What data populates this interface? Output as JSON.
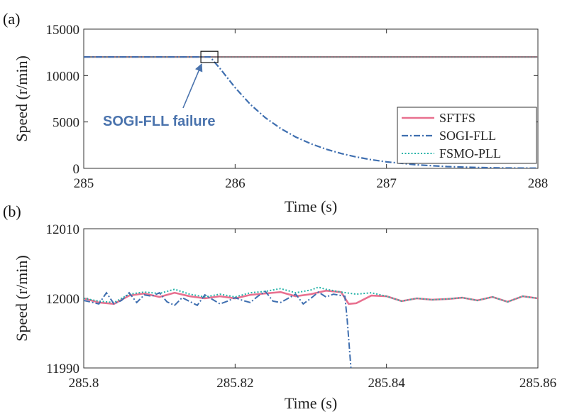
{
  "colors": {
    "SFTFS": "#e8708f",
    "SOGI-FLL": "#3f6fb0",
    "FSMO-PLL": "#26b3a8",
    "axis": "#333333",
    "annotation": "#4a73ad",
    "reference": "#7a7a7a"
  },
  "chart_data": [
    {
      "panel_label": "(a)",
      "type": "line",
      "xlabel": "Time (s)",
      "ylabel": "Speed (r/min)",
      "xlim": [
        285,
        288
      ],
      "ylim": [
        0,
        15000
      ],
      "xticks": [
        "285",
        "286",
        "287",
        "288"
      ],
      "yticks": [
        "0",
        "5000",
        "10000",
        "15000"
      ],
      "grid": false,
      "legend_position": "lower-right",
      "series": [
        {
          "name": "SFTFS",
          "points": [
            [
              285,
              12000
            ],
            [
              288,
              12000
            ]
          ]
        },
        {
          "name": "SOGI-FLL",
          "points": [
            [
              285,
              12000
            ],
            [
              285.835,
              12000
            ],
            [
              285.9,
              10760
            ],
            [
              286.0,
              8700
            ],
            [
              286.1,
              6900
            ],
            [
              286.2,
              5450
            ],
            [
              286.3,
              4300
            ],
            [
              286.4,
              3380
            ],
            [
              286.5,
              2650
            ],
            [
              286.6,
              2070
            ],
            [
              286.7,
              1600
            ],
            [
              286.8,
              1230
            ],
            [
              286.9,
              930
            ],
            [
              287.0,
              700
            ],
            [
              287.2,
              380
            ],
            [
              287.4,
              190
            ],
            [
              287.6,
              90
            ],
            [
              287.8,
              40
            ],
            [
              288,
              20
            ]
          ]
        },
        {
          "name": "FSMO-PLL",
          "points": [
            [
              285,
              12000
            ],
            [
              288,
              12000
            ]
          ]
        }
      ],
      "annotation": {
        "text": "SOGI-FLL failure",
        "target": [
          285.83,
          12000
        ]
      }
    },
    {
      "panel_label": "(b)",
      "type": "line",
      "xlabel": "Time (s)",
      "ylabel": "Speed (r/min)",
      "xlim": [
        285.8,
        285.86
      ],
      "ylim": [
        11990,
        12010
      ],
      "xticks": [
        "285.8",
        "285.82",
        "285.84",
        "285.86"
      ],
      "yticks": [
        "11990",
        "12000",
        "12010"
      ],
      "grid": false,
      "series": [
        {
          "name": "SFTFS",
          "points": [
            [
              285.8,
              12000
            ],
            [
              285.802,
              11999.4
            ],
            [
              285.804,
              11999.2
            ],
            [
              285.806,
              12000.4
            ],
            [
              285.808,
              12000.7
            ],
            [
              285.81,
              12000.2
            ],
            [
              285.812,
              12000.8
            ],
            [
              285.814,
              12000.3
            ],
            [
              285.816,
              12000.0
            ],
            [
              285.818,
              12000.3
            ],
            [
              285.82,
              12000.0
            ],
            [
              285.822,
              12000.5
            ],
            [
              285.824,
              12000.7
            ],
            [
              285.826,
              12000.9
            ],
            [
              285.828,
              12000.3
            ],
            [
              285.83,
              12000.6
            ],
            [
              285.832,
              12001.1
            ],
            [
              285.834,
              12000.9
            ],
            [
              285.835,
              11999.2
            ],
            [
              285.836,
              11999.3
            ],
            [
              285.838,
              12000.4
            ],
            [
              285.84,
              12000.3
            ],
            [
              285.842,
              11999.6
            ],
            [
              285.844,
              12000.0
            ],
            [
              285.846,
              11999.8
            ],
            [
              285.848,
              11999.9
            ],
            [
              285.85,
              12000.1
            ],
            [
              285.852,
              11999.7
            ],
            [
              285.854,
              12000.2
            ],
            [
              285.856,
              11999.5
            ],
            [
              285.858,
              12000.3
            ],
            [
              285.86,
              12000.0
            ]
          ]
        },
        {
          "name": "SOGI-FLL",
          "points": [
            [
              285.8,
              11999.7
            ],
            [
              285.802,
              11999.2
            ],
            [
              285.803,
              12000.8
            ],
            [
              285.804,
              11999.2
            ],
            [
              285.805,
              11999.7
            ],
            [
              285.806,
              12000.8
            ],
            [
              285.807,
              11999.4
            ],
            [
              285.808,
              12000.5
            ],
            [
              285.809,
              12000.3
            ],
            [
              285.81,
              12000.8
            ],
            [
              285.811,
              11999.5
            ],
            [
              285.812,
              11999.0
            ],
            [
              285.813,
              12000.1
            ],
            [
              285.815,
              11999.0
            ],
            [
              285.816,
              12000.5
            ],
            [
              285.818,
              11999.2
            ],
            [
              285.819,
              11999.6
            ],
            [
              285.82,
              12000.1
            ],
            [
              285.821,
              11999.7
            ],
            [
              285.822,
              11999.4
            ],
            [
              285.823,
              12000.3
            ],
            [
              285.824,
              12001.0
            ],
            [
              285.825,
              11999.6
            ],
            [
              285.826,
              11999.4
            ],
            [
              285.827,
              12000.0
            ],
            [
              285.828,
              12000.6
            ],
            [
              285.829,
              11999.2
            ],
            [
              285.83,
              12000.0
            ],
            [
              285.831,
              12000.9
            ],
            [
              285.832,
              12000.2
            ],
            [
              285.833,
              12000.6
            ],
            [
              285.8345,
              12000.3
            ],
            [
              285.8348,
              11997.0
            ],
            [
              285.8353,
              11990.0
            ]
          ]
        },
        {
          "name": "FSMO-PLL",
          "points": [
            [
              285.8,
              12000.0
            ],
            [
              285.802,
              11999.6
            ],
            [
              285.804,
              11999.4
            ],
            [
              285.806,
              12000.6
            ],
            [
              285.808,
              12000.9
            ],
            [
              285.81,
              12000.7
            ],
            [
              285.812,
              12001.3
            ],
            [
              285.814,
              12000.6
            ],
            [
              285.816,
              12000.2
            ],
            [
              285.818,
              12000.6
            ],
            [
              285.82,
              12000.2
            ],
            [
              285.822,
              12000.8
            ],
            [
              285.824,
              12001.0
            ],
            [
              285.826,
              12001.4
            ],
            [
              285.828,
              12000.8
            ],
            [
              285.83,
              12001.2
            ],
            [
              285.831,
              12001.6
            ],
            [
              285.832,
              12001.3
            ],
            [
              285.834,
              12000.9
            ],
            [
              285.836,
              12000.6
            ],
            [
              285.838,
              12000.8
            ],
            [
              285.84,
              12000.3
            ],
            [
              285.842,
              11999.6
            ],
            [
              285.844,
              12000.0
            ],
            [
              285.846,
              11999.8
            ],
            [
              285.848,
              11999.9
            ],
            [
              285.85,
              12000.1
            ],
            [
              285.852,
              11999.7
            ],
            [
              285.854,
              12000.2
            ],
            [
              285.856,
              11999.5
            ],
            [
              285.858,
              12000.3
            ],
            [
              285.86,
              12000.0
            ]
          ]
        }
      ]
    }
  ]
}
